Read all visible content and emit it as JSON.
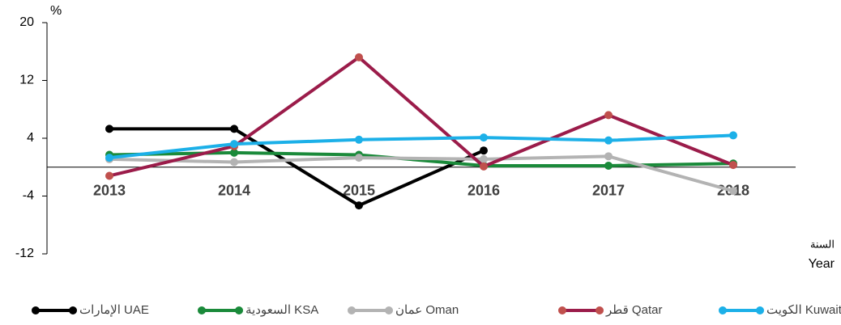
{
  "chart_data": {
    "type": "line",
    "y_unit": "%",
    "x_label_ar": "السنة",
    "x_label": "Year",
    "categories": [
      "2013",
      "2014",
      "2015",
      "2016",
      "2017",
      "2018"
    ],
    "ylim": [
      -12,
      20
    ],
    "yticks": [
      -12,
      -4,
      4,
      12,
      20
    ],
    "series": [
      {
        "name": "الإمارات UAE",
        "color": "#000000",
        "marker_color": "#000000",
        "values": [
          5.3,
          5.3,
          -5.3,
          2.3,
          null,
          null
        ]
      },
      {
        "name": "السعودية KSA",
        "color": "#1a8a3a",
        "marker_color": "#1a8a3a",
        "values": [
          1.7,
          2.0,
          1.7,
          0.2,
          0.2,
          0.5
        ]
      },
      {
        "name": "عمان Oman",
        "color": "#b3b3b3",
        "marker_color": "#b3b3b3",
        "values": [
          1.1,
          0.7,
          1.3,
          1.1,
          1.5,
          -3.3
        ]
      },
      {
        "name": "قطر Qatar",
        "color": "#9b1c4a",
        "marker_color": "#c0504d",
        "values": [
          -1.2,
          2.9,
          15.2,
          0.1,
          7.2,
          0.3
        ]
      },
      {
        "name": "الكويت Kuwait",
        "color": "#1cb0e8",
        "marker_color": "#1cb0e8",
        "values": [
          1.3,
          3.2,
          3.8,
          4.1,
          3.7,
          4.4
        ]
      }
    ]
  }
}
